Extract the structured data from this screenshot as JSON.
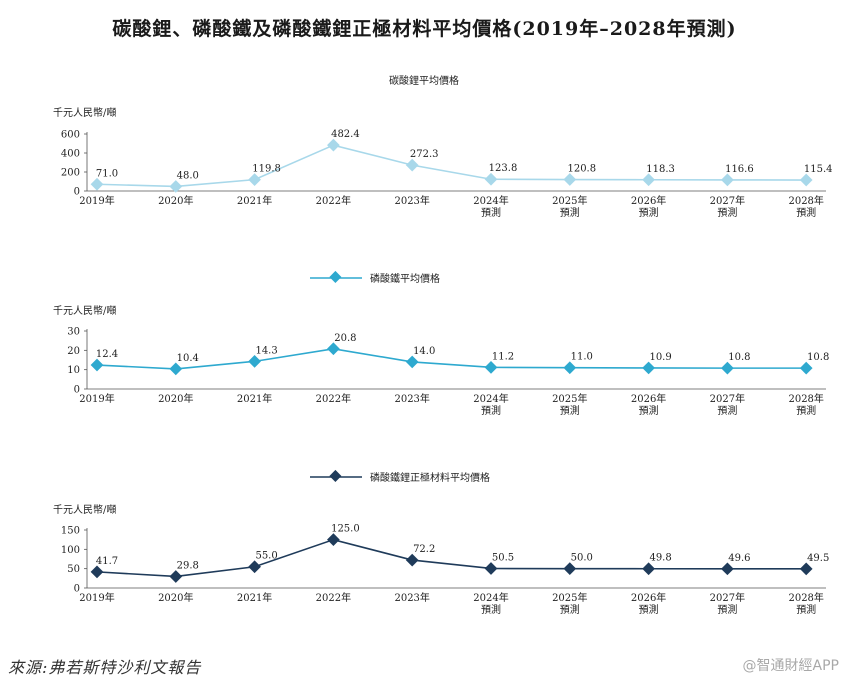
{
  "title": "碳酸鋰、磷酸鐵及磷酸鐵鋰正極材料平均價格(2019年–2028年預測)",
  "source": "來源:弗若斯特沙利文報告",
  "watermark": "@智通財經APP",
  "chart_data": [
    {
      "type": "line",
      "title": "碳酸鋰平均價格",
      "legend": "",
      "ylabel": "千元人民幣/噸",
      "yticks": [
        0,
        200,
        400,
        600
      ],
      "ylim": [
        0,
        600
      ],
      "categories": [
        "2019年",
        "2020年",
        "2021年",
        "2022年",
        "2023年",
        "2024年\n預測",
        "2025年\n預測",
        "2026年\n預測",
        "2027年\n預測",
        "2028年\n預測"
      ],
      "values": [
        71.0,
        48.0,
        119.8,
        482.4,
        272.3,
        123.8,
        120.8,
        118.3,
        116.6,
        115.4
      ],
      "labels": [
        "71.0",
        "48.0",
        "119.8",
        "482.4",
        "272.3",
        "123.8",
        "120.8",
        "118.3",
        "116.6",
        "115.4"
      ],
      "color": "#a8d8ea"
    },
    {
      "type": "line",
      "title": "",
      "legend": "磷酸鐵平均價格",
      "ylabel": "千元人民幣/噸",
      "yticks": [
        0,
        10,
        20,
        30
      ],
      "ylim": [
        0,
        30
      ],
      "categories": [
        "2019年",
        "2020年",
        "2021年",
        "2022年",
        "2023年",
        "2024年\n預測",
        "2025年\n預測",
        "2026年\n預測",
        "2027年\n預測",
        "2028年\n預測"
      ],
      "values": [
        12.4,
        10.4,
        14.3,
        20.8,
        14.0,
        11.2,
        11.0,
        10.9,
        10.8,
        10.8
      ],
      "labels": [
        "12.4",
        "10.4",
        "14.3",
        "20.8",
        "14.0",
        "11.2",
        "11.0",
        "10.9",
        "10.8",
        "10.8"
      ],
      "color": "#2ea9cf"
    },
    {
      "type": "line",
      "title": "",
      "legend": "磷酸鐵鋰正極材料平均價格",
      "ylabel": "千元人民幣/噸",
      "yticks": [
        0,
        50,
        100,
        150
      ],
      "ylim": [
        0,
        150
      ],
      "categories": [
        "2019年",
        "2020年",
        "2021年",
        "2022年",
        "2023年",
        "2024年\n預測",
        "2025年\n預測",
        "2026年\n預測",
        "2027年\n預測",
        "2028年\n預測"
      ],
      "values": [
        41.7,
        29.8,
        55.0,
        125.0,
        72.2,
        50.5,
        50.0,
        49.8,
        49.6,
        49.5
      ],
      "labels": [
        "41.7",
        "29.8",
        "55.0",
        "125.0",
        "72.2",
        "50.5",
        "50.0",
        "49.8",
        "49.6",
        "49.5"
      ],
      "color": "#1f3b5a"
    }
  ]
}
